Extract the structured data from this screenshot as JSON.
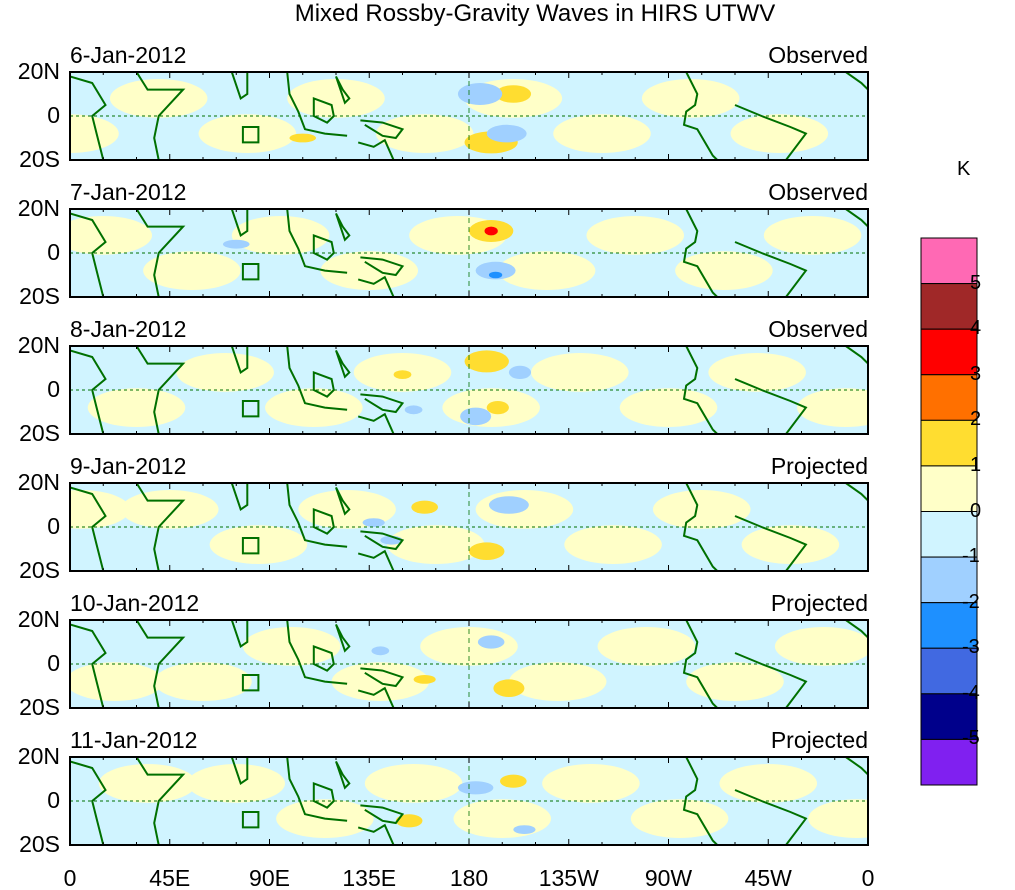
{
  "title": "Mixed Rossby-Gravity Waves in HIRS UTWV",
  "panels": [
    {
      "date": "6-Jan-2012",
      "kind": "Observed"
    },
    {
      "date": "7-Jan-2012",
      "kind": "Observed"
    },
    {
      "date": "8-Jan-2012",
      "kind": "Observed"
    },
    {
      "date": "9-Jan-2012",
      "kind": "Projected"
    },
    {
      "date": "10-Jan-2012",
      "kind": "Projected"
    },
    {
      "date": "11-Jan-2012",
      "kind": "Projected"
    }
  ],
  "lat_labels": [
    "20N",
    "0",
    "20S"
  ],
  "lon_labels": [
    "0",
    "45E",
    "90E",
    "135E",
    "180",
    "135W",
    "90W",
    "45W",
    "0"
  ],
  "colorbar": {
    "unit": "K",
    "labels": [
      "5",
      "4",
      "3",
      "2",
      "1",
      "0",
      "-1",
      "-2",
      "-3",
      "-4",
      "-5"
    ],
    "colors": [
      "#ff69b4",
      "#a02828",
      "#ff0000",
      "#ff7000",
      "#ffdd30",
      "#ffffc8",
      "#d0f4ff",
      "#a0d0ff",
      "#1e90ff",
      "#4169e1",
      "#00008b",
      "#8020f0"
    ]
  },
  "colors": {
    "land": "#007000"
  }
}
